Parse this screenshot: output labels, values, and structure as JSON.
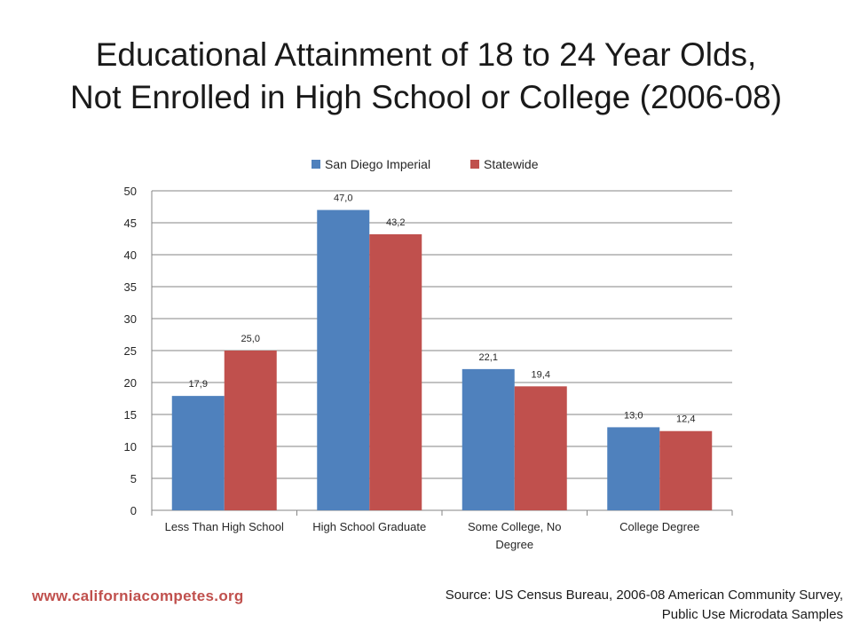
{
  "title_line1": "Educational Attainment of 18 to 24 Year Olds,",
  "title_line2": "Not Enrolled in High School or College (2006-08)",
  "chart_data": {
    "type": "bar",
    "title": "Educational Attainment of 18 to 24 Year Olds, Not Enrolled in High School or College (2006-08)",
    "categories": [
      [
        "Less Than High School"
      ],
      [
        "High School Graduate"
      ],
      [
        "Some College, No",
        "Degree"
      ],
      [
        "College Degree"
      ]
    ],
    "series": [
      {
        "name": "San Diego Imperial",
        "color": "#4f81bd",
        "values": [
          17.9,
          47.0,
          22.1,
          13.0
        ],
        "labels": [
          "17,9",
          "47,0",
          "22,1",
          "13,0"
        ]
      },
      {
        "name": "Statewide",
        "color": "#c0504d",
        "values": [
          25.0,
          43.2,
          19.4,
          12.4
        ],
        "labels": [
          "25,0",
          "43,2",
          "19,4",
          "12,4"
        ]
      }
    ],
    "ylim": [
      0,
      50
    ],
    "yticks": [
      0,
      5,
      10,
      15,
      20,
      25,
      30,
      35,
      40,
      45,
      50
    ],
    "grid": true,
    "legend": "top-center"
  },
  "footer": {
    "url": "www.californiacompetes.org",
    "source_line1": "Source: US Census Bureau, 2006-08 American Community Survey,",
    "source_line2": "Public Use Microdata Samples"
  }
}
